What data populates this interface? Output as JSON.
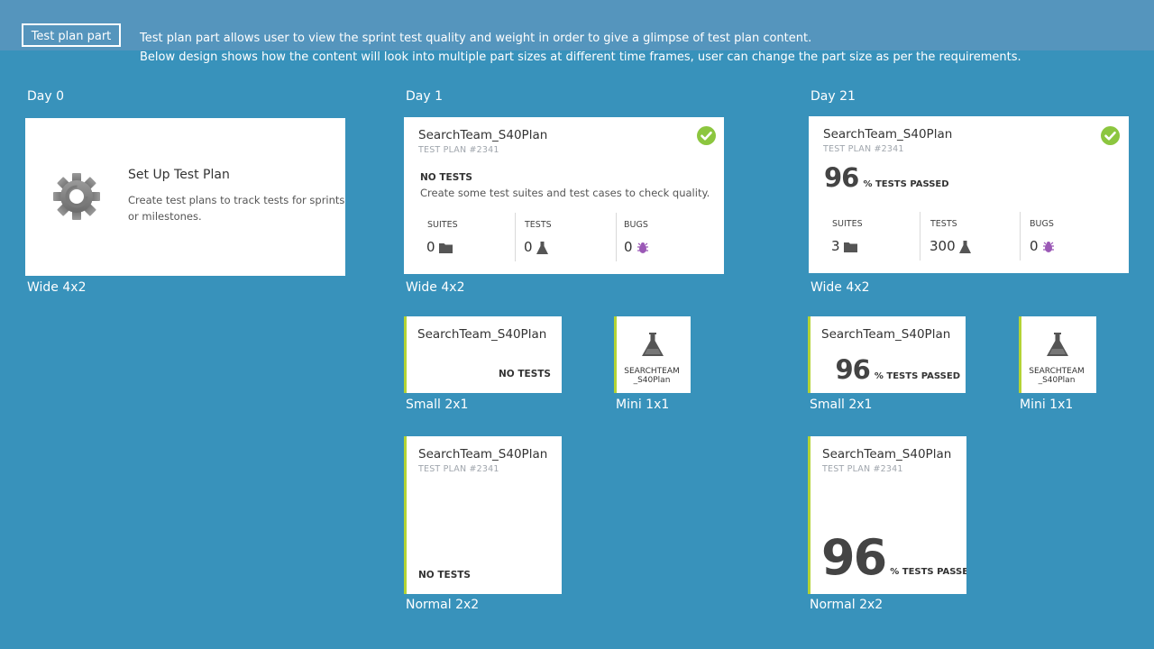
{
  "header": {
    "badge": "Test plan part",
    "line1": "Test plan part allows user to view the sprint test quality and weight in order to give a glimpse of test plan content.",
    "line2": "Below design shows how the content will look into multiple part sizes at different time frames, user can change the part size as per the requirements."
  },
  "colors": {
    "background": "#3892bb",
    "accent_lime": "#b4d335",
    "check_green": "#8cc63f"
  },
  "days": {
    "day0": "Day 0",
    "day1": "Day 1",
    "day21": "Day 21"
  },
  "sizes": {
    "wide": "Wide 4x2",
    "small": "Small 2x1",
    "mini": "Mini 1x1",
    "normal": "Normal 2x2"
  },
  "setup": {
    "title": "Set Up Test Plan",
    "desc1": "Create test plans to track tests for sprints",
    "desc2": "or milestones.",
    "icon": "gear-icon"
  },
  "plan": {
    "name": "SearchTeam_S40Plan",
    "id_label": "TEST PLAN #2341",
    "mini_line1": "SEARCHTEAM",
    "mini_line2": "_S40Plan",
    "mini_icon": "flask-icon"
  },
  "day1": {
    "no_tests": "NO TESTS",
    "hint": "Create some test suites and test cases to check quality.",
    "stats": {
      "suites_label": "SUITES",
      "suites": "0",
      "tests_label": "TESTS",
      "tests": "0",
      "bugs_label": "BUGS",
      "bugs": "0"
    }
  },
  "day21": {
    "percent": "96",
    "passed_label": "% TESTS PASSED",
    "stats": {
      "suites_label": "SUITES",
      "suites": "3",
      "tests_label": "TESTS",
      "tests": "300",
      "bugs_label": "BUGS",
      "bugs": "0"
    }
  }
}
